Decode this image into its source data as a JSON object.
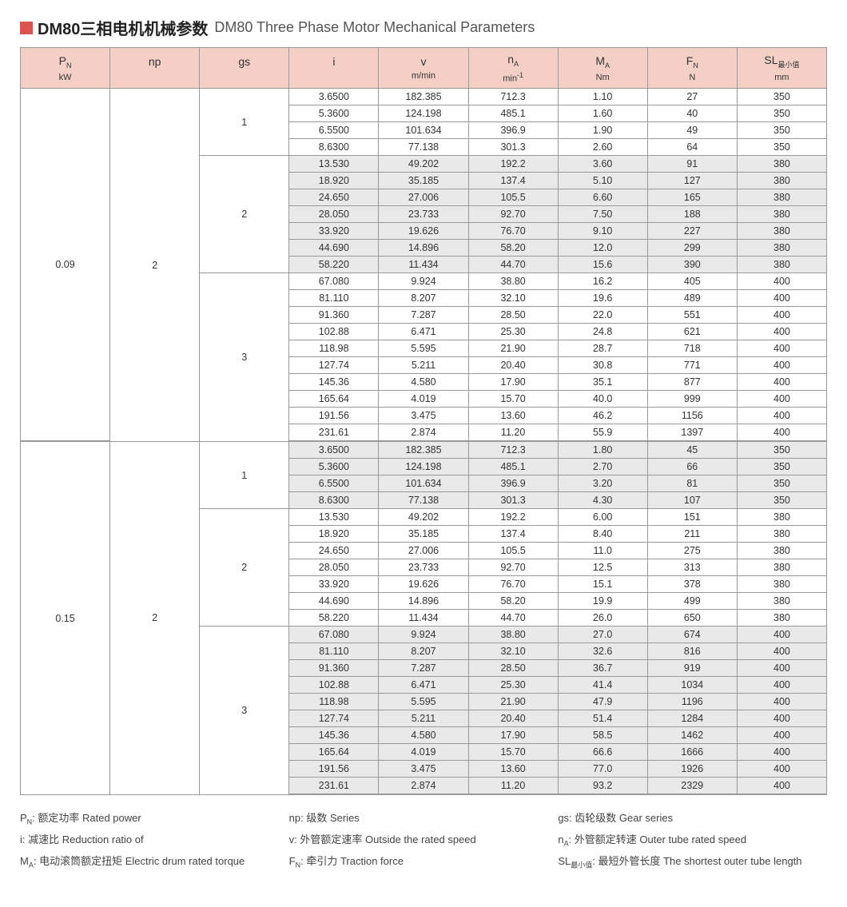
{
  "title": {
    "cn": "DM80三相电机机械参数",
    "en": "DM80 Three Phase Motor Mechanical Parameters"
  },
  "columns": [
    {
      "label": "P<sub>N</sub>",
      "unit": "kW"
    },
    {
      "label": "np",
      "unit": ""
    },
    {
      "label": "gs",
      "unit": ""
    },
    {
      "label": "i",
      "unit": ""
    },
    {
      "label": "v",
      "unit": "m/min"
    },
    {
      "label": "n<sub>A</sub>",
      "unit": "min<sup>-1</sup>"
    },
    {
      "label": "M<sub>A</sub>",
      "unit": "Nm"
    },
    {
      "label": "F<sub>N</sub>",
      "unit": "N"
    },
    {
      "label": "SL<sub>最小值</sub>",
      "unit": "mm"
    }
  ],
  "blocks": [
    {
      "pn": "0.09",
      "np": "2",
      "gsGroups": [
        {
          "gs": "1",
          "shaded": false,
          "rows": [
            [
              "3.6500",
              "182.385",
              "712.3",
              "1.10",
              "27",
              "350"
            ],
            [
              "5.3600",
              "124.198",
              "485.1",
              "1.60",
              "40",
              "350"
            ],
            [
              "6.5500",
              "101.634",
              "396.9",
              "1.90",
              "49",
              "350"
            ],
            [
              "8.6300",
              "77.138",
              "301.3",
              "2.60",
              "64",
              "350"
            ]
          ]
        },
        {
          "gs": "2",
          "shaded": true,
          "rows": [
            [
              "13.530",
              "49.202",
              "192.2",
              "3.60",
              "91",
              "380"
            ],
            [
              "18.920",
              "35.185",
              "137.4",
              "5.10",
              "127",
              "380"
            ],
            [
              "24.650",
              "27.006",
              "105.5",
              "6.60",
              "165",
              "380"
            ],
            [
              "28.050",
              "23.733",
              "92.70",
              "7.50",
              "188",
              "380"
            ],
            [
              "33.920",
              "19.626",
              "76.70",
              "9.10",
              "227",
              "380"
            ],
            [
              "44.690",
              "14.896",
              "58.20",
              "12.0",
              "299",
              "380"
            ],
            [
              "58.220",
              "11.434",
              "44.70",
              "15.6",
              "390",
              "380"
            ]
          ]
        },
        {
          "gs": "3",
          "shaded": false,
          "rows": [
            [
              "67.080",
              "9.924",
              "38.80",
              "16.2",
              "405",
              "400"
            ],
            [
              "81.110",
              "8.207",
              "32.10",
              "19.6",
              "489",
              "400"
            ],
            [
              "91.360",
              "7.287",
              "28.50",
              "22.0",
              "551",
              "400"
            ],
            [
              "102.88",
              "6.471",
              "25.30",
              "24.8",
              "621",
              "400"
            ],
            [
              "118.98",
              "5.595",
              "21.90",
              "28.7",
              "718",
              "400"
            ],
            [
              "127.74",
              "5.211",
              "20.40",
              "30.8",
              "771",
              "400"
            ],
            [
              "145.36",
              "4.580",
              "17.90",
              "35.1",
              "877",
              "400"
            ],
            [
              "165.64",
              "4.019",
              "15.70",
              "40.0",
              "999",
              "400"
            ],
            [
              "191.56",
              "3.475",
              "13.60",
              "46.2",
              "1156",
              "400"
            ],
            [
              "231.61",
              "2.874",
              "11.20",
              "55.9",
              "1397",
              "400"
            ]
          ]
        }
      ]
    },
    {
      "pn": "0.15",
      "np": "2",
      "gsGroups": [
        {
          "gs": "1",
          "shaded": true,
          "rows": [
            [
              "3.6500",
              "182.385",
              "712.3",
              "1.80",
              "45",
              "350"
            ],
            [
              "5.3600",
              "124.198",
              "485.1",
              "2.70",
              "66",
              "350"
            ],
            [
              "6.5500",
              "101.634",
              "396.9",
              "3.20",
              "81",
              "350"
            ],
            [
              "8.6300",
              "77.138",
              "301.3",
              "4.30",
              "107",
              "350"
            ]
          ]
        },
        {
          "gs": "2",
          "shaded": false,
          "rows": [
            [
              "13.530",
              "49.202",
              "192.2",
              "6.00",
              "151",
              "380"
            ],
            [
              "18.920",
              "35.185",
              "137.4",
              "8.40",
              "211",
              "380"
            ],
            [
              "24.650",
              "27.006",
              "105.5",
              "11.0",
              "275",
              "380"
            ],
            [
              "28.050",
              "23.733",
              "92.70",
              "12.5",
              "313",
              "380"
            ],
            [
              "33.920",
              "19.626",
              "76.70",
              "15.1",
              "378",
              "380"
            ],
            [
              "44.690",
              "14.896",
              "58.20",
              "19.9",
              "499",
              "380"
            ],
            [
              "58.220",
              "11.434",
              "44.70",
              "26.0",
              "650",
              "380"
            ]
          ]
        },
        {
          "gs": "3",
          "shaded": true,
          "rows": [
            [
              "67.080",
              "9.924",
              "38.80",
              "27.0",
              "674",
              "400"
            ],
            [
              "81.110",
              "8.207",
              "32.10",
              "32.6",
              "816",
              "400"
            ],
            [
              "91.360",
              "7.287",
              "28.50",
              "36.7",
              "919",
              "400"
            ],
            [
              "102.88",
              "6.471",
              "25.30",
              "41.4",
              "1034",
              "400"
            ],
            [
              "118.98",
              "5.595",
              "21.90",
              "47.9",
              "1196",
              "400"
            ],
            [
              "127.74",
              "5.211",
              "20.40",
              "51.4",
              "1284",
              "400"
            ],
            [
              "145.36",
              "4.580",
              "17.90",
              "58.5",
              "1462",
              "400"
            ],
            [
              "165.64",
              "4.019",
              "15.70",
              "66.6",
              "1666",
              "400"
            ],
            [
              "191.56",
              "3.475",
              "13.60",
              "77.0",
              "1926",
              "400"
            ],
            [
              "231.61",
              "2.874",
              "11.20",
              "93.2",
              "2329",
              "400"
            ]
          ]
        }
      ]
    }
  ],
  "legend": [
    "P<sub>N</sub>: 额定功率 Rated power",
    "np: 级数 Series",
    "gs: 齿轮级数 Gear series",
    "i: 减速比 Reduction ratio of",
    "v: 外管额定速率 Outside the rated speed",
    "n<sub>A</sub>: 外管额定转速 Outer tube rated speed",
    "M<sub>A</sub>: 电动滚筒额定扭矩 Electric drum rated torque",
    "F<sub>N</sub>: 牵引力 Traction force",
    "SL<sub>最小值</sub>: 最短外管长度 The shortest outer tube length"
  ],
  "style": {
    "header_bg": "#f3cfc6",
    "shaded_bg": "#e9e9e9",
    "border_color": "#999",
    "title_square_color": "#d9534f"
  }
}
